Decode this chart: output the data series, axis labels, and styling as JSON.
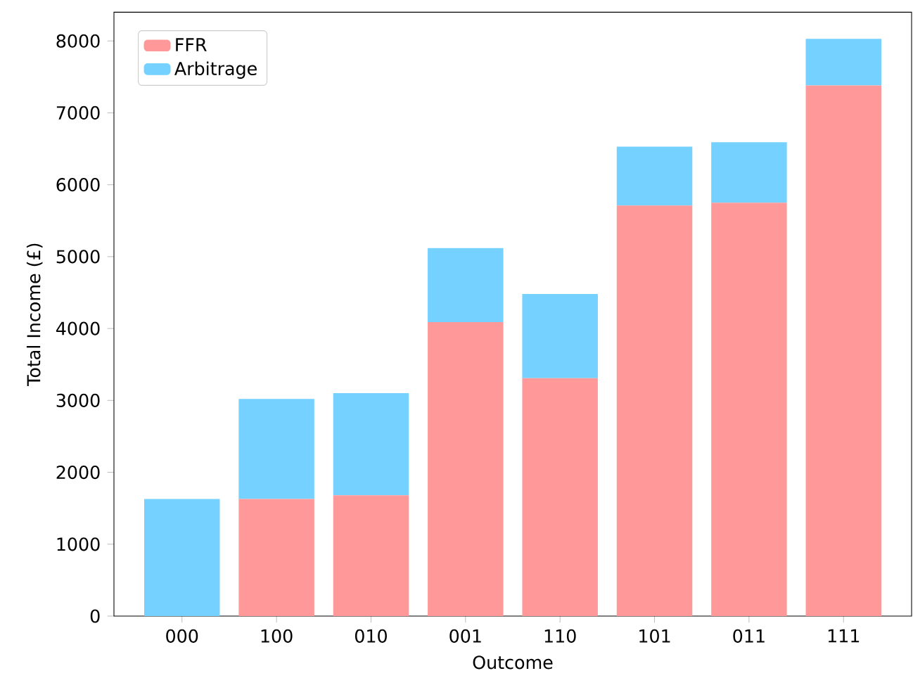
{
  "chart_data": {
    "type": "bar",
    "stacked": true,
    "xlabel": "Outcome",
    "ylabel": "Total Income (£)",
    "categories": [
      "000",
      "100",
      "010",
      "001",
      "110",
      "101",
      "011",
      "111"
    ],
    "series": [
      {
        "name": "FFR",
        "color": "#ff9999",
        "values": [
          0,
          1630,
          1680,
          4090,
          3310,
          5710,
          5750,
          7380
        ]
      },
      {
        "name": "Arbitrage",
        "color": "#75d1ff",
        "values": [
          1630,
          1390,
          1420,
          1030,
          1170,
          820,
          840,
          650
        ]
      }
    ],
    "ylim": [
      0,
      8400
    ],
    "yticks": [
      0,
      1000,
      2000,
      3000,
      4000,
      5000,
      6000,
      7000,
      8000
    ],
    "grid": false,
    "legend": "top left"
  }
}
